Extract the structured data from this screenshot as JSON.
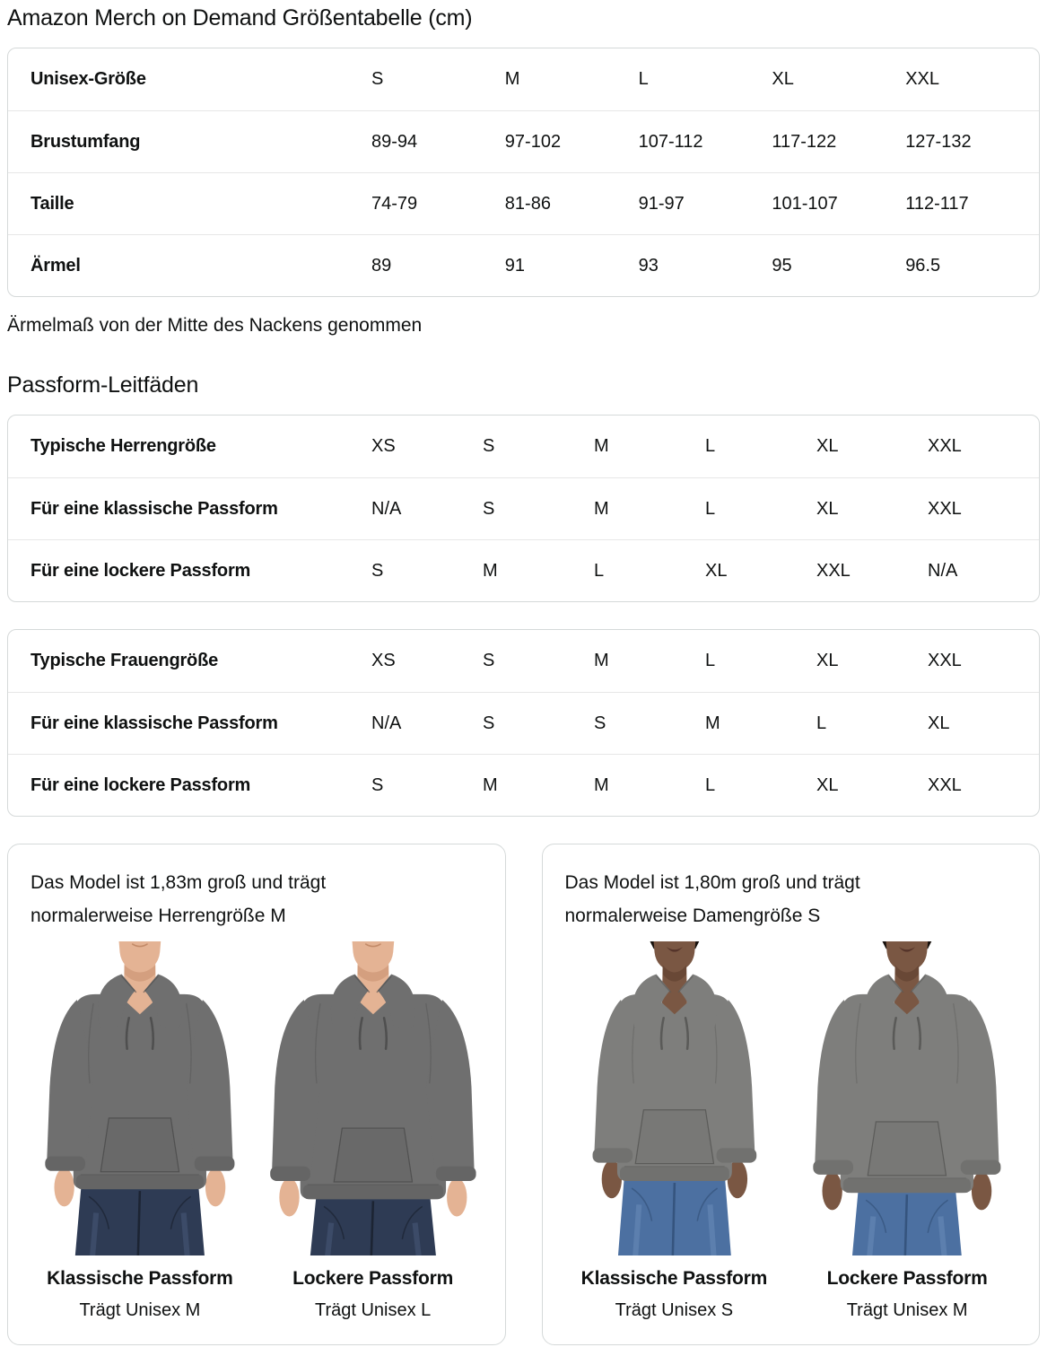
{
  "page": {
    "title": "Amazon Merch on Demand Größentabelle (cm)",
    "sleeve_note": "Ärmelmaß von der Mitte des Nackens genommen",
    "fit_guides_heading": "Passform-Leitfäden"
  },
  "size_table": {
    "rows": [
      {
        "label": "Unisex-Größe",
        "values": [
          "S",
          "M",
          "L",
          "XL",
          "XXL"
        ]
      },
      {
        "label": "Brustumfang",
        "values": [
          "89-94",
          "97-102",
          "107-112",
          "117-122",
          "127-132"
        ]
      },
      {
        "label": "Taille",
        "values": [
          "74-79",
          "81-86",
          "91-97",
          "101-107",
          "112-117"
        ]
      },
      {
        "label": "Ärmel",
        "values": [
          "89",
          "91",
          "93",
          "95",
          "96.5"
        ]
      }
    ]
  },
  "mens_fit_table": {
    "rows": [
      {
        "label": "Typische Herrengröße",
        "values": [
          "XS",
          "S",
          "M",
          "L",
          "XL",
          "XXL"
        ]
      },
      {
        "label": "Für eine klassische Passform",
        "values": [
          "N/A",
          "S",
          "M",
          "L",
          "XL",
          "XXL"
        ]
      },
      {
        "label": "Für eine lockere Passform",
        "values": [
          "S",
          "M",
          "L",
          "XL",
          "XXL",
          "N/A"
        ]
      }
    ]
  },
  "womens_fit_table": {
    "rows": [
      {
        "label": "Typische Frauengröße",
        "values": [
          "XS",
          "S",
          "M",
          "L",
          "XL",
          "XXL"
        ]
      },
      {
        "label": "Für eine klassische Passform",
        "values": [
          "N/A",
          "S",
          "S",
          "M",
          "L",
          "XL"
        ]
      },
      {
        "label": "Für eine lockere Passform",
        "values": [
          "S",
          "M",
          "M",
          "L",
          "XL",
          "XXL"
        ]
      }
    ]
  },
  "model_cards": [
    {
      "description": "Das Model ist 1,83m groß und trägt normalerweise Herrengröße M",
      "photos": [
        {
          "fit_label": "Klassische Passform",
          "size_label": "Trägt Unisex M",
          "figure": "man-classic"
        },
        {
          "fit_label": "Lockere Passform",
          "size_label": "Trägt Unisex L",
          "figure": "man-loose"
        }
      ]
    },
    {
      "description": "Das Model ist 1,80m groß und trägt normalerweise Damengröße S",
      "photos": [
        {
          "fit_label": "Klassische Passform",
          "size_label": "Trägt Unisex S",
          "figure": "woman-classic"
        },
        {
          "fit_label": "Lockere Passform",
          "size_label": "Trägt Unisex M",
          "figure": "woman-loose"
        }
      ]
    }
  ],
  "ui_colors": {
    "text": "#0F1111",
    "table_border": "#D5D9D9",
    "row_divider": "#E7E7E7",
    "card_border": "#D5D9D9",
    "background": "#FFFFFF"
  },
  "illustration_colors": {
    "man": {
      "skin": "#E4B394",
      "skin_shadow": "#C38B69",
      "garment": "#6F6F6F",
      "garment_dark": "#606060",
      "seam": "#4F4F4F",
      "rib": "#656565",
      "pocket": "#696969",
      "jeans": "#2E3B54",
      "jeans_dark": "#1C2433",
      "jeans_light": "#56698E"
    },
    "woman": {
      "skin": "#7A5743",
      "skin_shadow": "#57392A",
      "garment": "#7E7E7C",
      "garment_dark": "#6C6C6A",
      "seam": "#5A5A58",
      "rib": "#71716F",
      "pocket": "#787876",
      "jeans": "#4C70A1",
      "jeans_dark": "#35547E",
      "jeans_light": "#7C9CC6",
      "hair": "#16100C",
      "lips": "#55342A"
    }
  }
}
